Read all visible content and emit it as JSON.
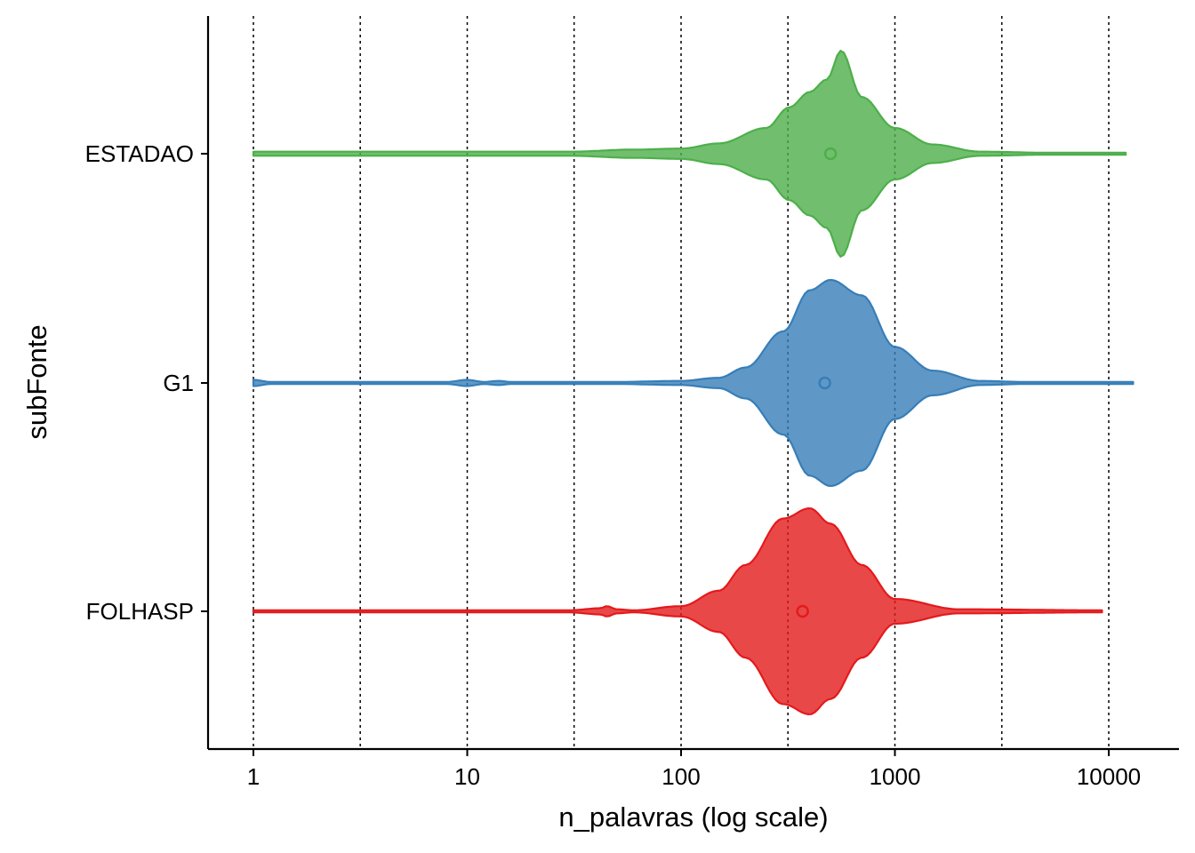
{
  "chart_data": {
    "type": "violin",
    "orientation": "horizontal",
    "xlabel": "n_palavras (log scale)",
    "ylabel": "subFonte",
    "x_scale": "log10",
    "xlim": [
      0.62,
      20000
    ],
    "x_ticks": [
      1,
      10,
      100,
      1000,
      10000
    ],
    "x_tick_labels": [
      "1",
      "10",
      "100",
      "1000",
      "10000"
    ],
    "grid": {
      "vertical_dotted_at": [
        1,
        3.16,
        10,
        31.6,
        100,
        316,
        1000,
        3162,
        10000
      ]
    },
    "legend": "none",
    "categories": [
      "ESTADAO",
      "G1",
      "FOLHASP"
    ],
    "series": [
      {
        "name": "ESTADAO",
        "color": "#4DAF4A",
        "range": [
          1,
          12000
        ],
        "center_point": 500,
        "density": [
          [
            1,
            0.02
          ],
          [
            10,
            0.02
          ],
          [
            30,
            0.02
          ],
          [
            60,
            0.04
          ],
          [
            100,
            0.05
          ],
          [
            150,
            0.1
          ],
          [
            250,
            0.25
          ],
          [
            320,
            0.45
          ],
          [
            400,
            0.6
          ],
          [
            480,
            0.72
          ],
          [
            560,
            1.0
          ],
          [
            700,
            0.55
          ],
          [
            1000,
            0.25
          ],
          [
            1500,
            0.09
          ],
          [
            2500,
            0.02
          ],
          [
            5000,
            0.01
          ],
          [
            12000,
            0.01
          ]
        ]
      },
      {
        "name": "G1",
        "color": "#377EB8",
        "range": [
          1,
          13000
        ],
        "center_point": 470,
        "density": [
          [
            1,
            0.03
          ],
          [
            1.2,
            0.01
          ],
          [
            8,
            0.01
          ],
          [
            10,
            0.03
          ],
          [
            12,
            0.01
          ],
          [
            14,
            0.02
          ],
          [
            16,
            0.01
          ],
          [
            50,
            0.01
          ],
          [
            100,
            0.02
          ],
          [
            150,
            0.05
          ],
          [
            200,
            0.15
          ],
          [
            300,
            0.5
          ],
          [
            400,
            0.9
          ],
          [
            500,
            1.0
          ],
          [
            700,
            0.85
          ],
          [
            1000,
            0.35
          ],
          [
            1500,
            0.12
          ],
          [
            2500,
            0.02
          ],
          [
            4000,
            0.01
          ],
          [
            13000,
            0.01
          ]
        ]
      },
      {
        "name": "FOLHASP",
        "color": "#E41A1C",
        "range": [
          1,
          9300
        ],
        "center_point": 370,
        "density": [
          [
            1,
            0.01
          ],
          [
            30,
            0.01
          ],
          [
            42,
            0.03
          ],
          [
            45,
            0.05
          ],
          [
            50,
            0.02
          ],
          [
            60,
            0.01
          ],
          [
            100,
            0.05
          ],
          [
            150,
            0.2
          ],
          [
            200,
            0.45
          ],
          [
            300,
            0.9
          ],
          [
            400,
            1.0
          ],
          [
            500,
            0.85
          ],
          [
            700,
            0.45
          ],
          [
            1000,
            0.12
          ],
          [
            2000,
            0.02
          ],
          [
            9300,
            0.01
          ]
        ]
      }
    ]
  }
}
